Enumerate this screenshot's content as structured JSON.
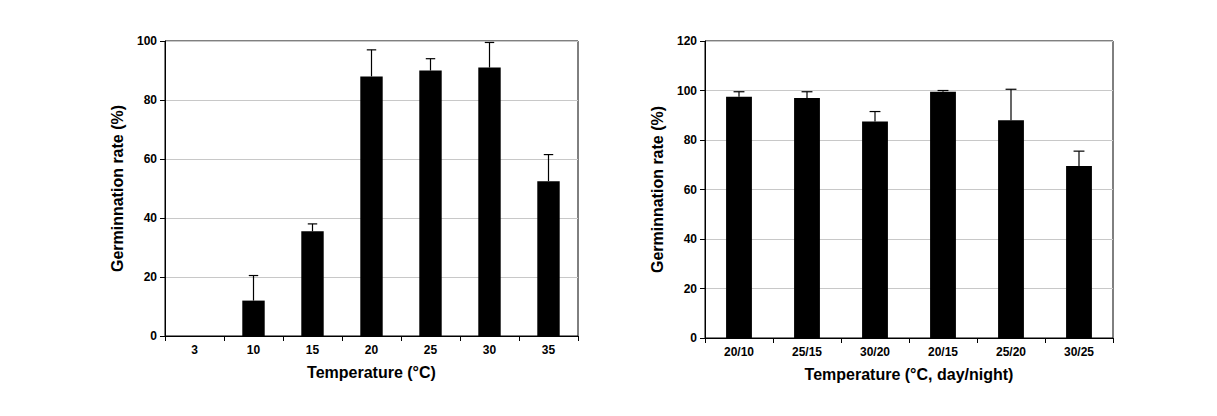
{
  "chart_data": [
    {
      "type": "bar",
      "x_label": "Temperature (°C)",
      "y_label": "Germinnation rate (%)",
      "categories": [
        "3",
        "10",
        "15",
        "20",
        "25",
        "30",
        "35"
      ],
      "values": [
        0,
        12,
        35.5,
        88,
        90,
        91,
        52.5
      ],
      "errors": [
        0,
        8.5,
        2.5,
        9,
        4,
        8.5,
        9
      ],
      "color": "#000000",
      "ylim": [
        0,
        100
      ],
      "yticks": [
        0,
        20,
        40,
        60,
        80,
        100
      ],
      "grid": true
    },
    {
      "type": "bar",
      "x_label": "Temperature (°C, day/night)",
      "y_label": "Germinnation rate (%)",
      "categories": [
        "20/10",
        "25/15",
        "30/20",
        "20/15",
        "25/20",
        "30/25"
      ],
      "values": [
        97.5,
        97,
        87.5,
        99.5,
        88,
        69.5
      ],
      "errors": [
        2,
        2.5,
        4,
        0.5,
        12.5,
        6
      ],
      "color": "#000000",
      "ylim": [
        0,
        120
      ],
      "yticks": [
        0,
        20,
        40,
        60,
        80,
        100,
        120
      ],
      "grid": true
    }
  ]
}
